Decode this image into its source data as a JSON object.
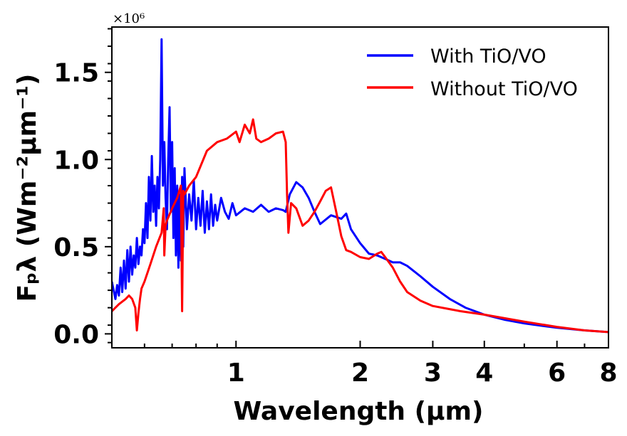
{
  "chart_data": {
    "type": "line",
    "title": "",
    "xlabel": "Wavelength (μm)",
    "ylabel": "Fₚλ (Wm⁻²μm⁻¹)",
    "xscale": "log",
    "xlim": [
      0.5,
      8.0
    ],
    "ylim": [
      -0.08,
      1.76
    ],
    "y_multiplier": "×10⁶",
    "x_ticks": [
      {
        "value": 1,
        "label": "1"
      },
      {
        "value": 2,
        "label": "2"
      },
      {
        "value": 3,
        "label": "3"
      },
      {
        "value": 4,
        "label": "4"
      },
      {
        "value": 6,
        "label": "6"
      },
      {
        "value": 8,
        "label": "8"
      }
    ],
    "y_ticks": [
      {
        "value": 0.0,
        "label": "0.0"
      },
      {
        "value": 0.5,
        "label": "0.5"
      },
      {
        "value": 1.0,
        "label": "1.0"
      },
      {
        "value": 1.5,
        "label": "1.5"
      }
    ],
    "legend_position": "top-right",
    "series": [
      {
        "name": "With TiO/VO",
        "color": "#0000ff",
        "x": [
          0.5,
          0.51,
          0.515,
          0.52,
          0.525,
          0.53,
          0.535,
          0.54,
          0.545,
          0.55,
          0.555,
          0.56,
          0.565,
          0.57,
          0.575,
          0.58,
          0.585,
          0.59,
          0.595,
          0.6,
          0.605,
          0.61,
          0.615,
          0.62,
          0.625,
          0.63,
          0.635,
          0.64,
          0.645,
          0.65,
          0.655,
          0.66,
          0.665,
          0.67,
          0.675,
          0.68,
          0.685,
          0.69,
          0.695,
          0.7,
          0.705,
          0.71,
          0.715,
          0.72,
          0.725,
          0.73,
          0.735,
          0.74,
          0.745,
          0.75,
          0.76,
          0.77,
          0.78,
          0.79,
          0.8,
          0.81,
          0.82,
          0.83,
          0.84,
          0.85,
          0.86,
          0.87,
          0.88,
          0.89,
          0.9,
          0.92,
          0.94,
          0.96,
          0.98,
          1.0,
          1.05,
          1.1,
          1.15,
          1.2,
          1.25,
          1.3,
          1.32,
          1.35,
          1.4,
          1.45,
          1.5,
          1.55,
          1.6,
          1.7,
          1.8,
          1.85,
          1.9,
          2.0,
          2.1,
          2.2,
          2.3,
          2.4,
          2.5,
          2.6,
          2.8,
          3.0,
          3.3,
          3.6,
          4.0,
          4.5,
          5.0,
          6.0,
          7.0,
          8.0
        ],
        "y": [
          0.3,
          0.2,
          0.28,
          0.22,
          0.38,
          0.24,
          0.42,
          0.26,
          0.48,
          0.3,
          0.5,
          0.34,
          0.45,
          0.38,
          0.55,
          0.4,
          0.5,
          0.45,
          0.6,
          0.52,
          0.75,
          0.55,
          0.9,
          0.65,
          1.02,
          0.7,
          0.85,
          0.62,
          0.9,
          0.72,
          1.0,
          1.69,
          0.85,
          1.1,
          0.78,
          0.6,
          1.0,
          1.3,
          0.7,
          1.1,
          0.55,
          0.95,
          0.45,
          0.85,
          0.38,
          0.8,
          0.42,
          0.9,
          0.5,
          0.95,
          0.6,
          0.8,
          0.65,
          0.88,
          0.6,
          0.78,
          0.62,
          0.82,
          0.58,
          0.76,
          0.6,
          0.8,
          0.62,
          0.74,
          0.65,
          0.78,
          0.7,
          0.66,
          0.75,
          0.68,
          0.72,
          0.7,
          0.74,
          0.7,
          0.72,
          0.71,
          0.7,
          0.8,
          0.87,
          0.84,
          0.78,
          0.7,
          0.63,
          0.68,
          0.66,
          0.69,
          0.6,
          0.52,
          0.46,
          0.45,
          0.43,
          0.41,
          0.41,
          0.39,
          0.33,
          0.27,
          0.2,
          0.15,
          0.11,
          0.08,
          0.06,
          0.035,
          0.02,
          0.01
        ]
      },
      {
        "name": "Without TiO/VO",
        "color": "#ff0000",
        "x": [
          0.5,
          0.52,
          0.54,
          0.55,
          0.56,
          0.57,
          0.575,
          0.58,
          0.585,
          0.59,
          0.6,
          0.62,
          0.64,
          0.66,
          0.668,
          0.67,
          0.675,
          0.68,
          0.7,
          0.72,
          0.735,
          0.74,
          0.745,
          0.75,
          0.77,
          0.8,
          0.85,
          0.9,
          0.95,
          1.0,
          1.02,
          1.05,
          1.08,
          1.1,
          1.12,
          1.15,
          1.2,
          1.25,
          1.3,
          1.32,
          1.33,
          1.34,
          1.36,
          1.4,
          1.45,
          1.5,
          1.55,
          1.6,
          1.65,
          1.7,
          1.75,
          1.8,
          1.85,
          1.9,
          2.0,
          2.1,
          2.2,
          2.25,
          2.3,
          2.4,
          2.5,
          2.6,
          2.8,
          3.0,
          3.5,
          4.0,
          5.0,
          6.0,
          7.0,
          8.0
        ],
        "y": [
          0.13,
          0.17,
          0.2,
          0.22,
          0.2,
          0.15,
          0.02,
          0.12,
          0.2,
          0.26,
          0.3,
          0.4,
          0.5,
          0.58,
          0.72,
          0.45,
          0.62,
          0.65,
          0.72,
          0.78,
          0.85,
          0.13,
          0.82,
          0.8,
          0.85,
          0.9,
          1.05,
          1.1,
          1.12,
          1.16,
          1.1,
          1.2,
          1.15,
          1.23,
          1.12,
          1.1,
          1.12,
          1.15,
          1.16,
          1.1,
          0.8,
          0.58,
          0.75,
          0.72,
          0.62,
          0.65,
          0.7,
          0.76,
          0.82,
          0.84,
          0.7,
          0.56,
          0.48,
          0.47,
          0.44,
          0.43,
          0.46,
          0.47,
          0.44,
          0.38,
          0.3,
          0.24,
          0.19,
          0.16,
          0.13,
          0.11,
          0.07,
          0.04,
          0.02,
          0.01
        ]
      }
    ]
  }
}
